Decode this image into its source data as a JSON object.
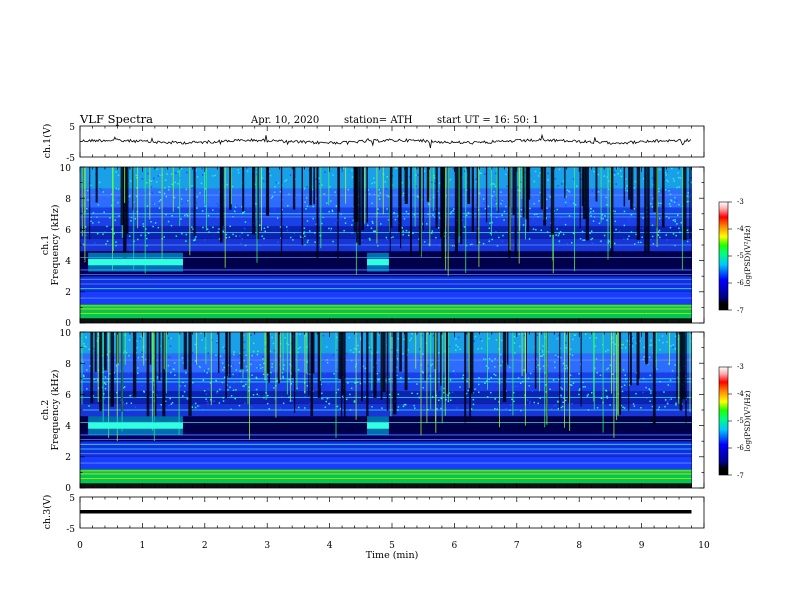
{
  "header": {
    "title": "VLF  Spectra",
    "date": "Apr. 10, 2020",
    "station": "station= ATH",
    "start": "start  UT  =    16: 50: 1"
  },
  "chart_data": [
    {
      "type": "line",
      "panel": "ch1-waveform",
      "ylabel": "ch.1(V)",
      "ylim": [
        -5,
        5
      ],
      "yticks": [
        "5",
        "-5"
      ],
      "xlim": [
        0,
        10
      ],
      "trace_level_approx": 0,
      "color": "#000000"
    },
    {
      "type": "heatmap",
      "panel": "ch1-spectrogram",
      "ylabel": "Frequency (kHz)",
      "channel_label": "ch.1",
      "ylim": [
        0,
        10
      ],
      "yticks": [
        "0",
        "2",
        "4",
        "6",
        "8",
        "10"
      ],
      "xlim": [
        0,
        10
      ],
      "data_end_min": 9.8,
      "colorbar": {
        "label": "log(PSD)(V²/Hz)",
        "range": [
          -7,
          -3
        ],
        "ticks": [
          "-3",
          "-4",
          "-5",
          "-6",
          "-7"
        ]
      },
      "signal_bursts": [
        {
          "t_start": 0.13,
          "t_end": 1.65,
          "f_khz": 3.9
        },
        {
          "t_start": 4.6,
          "t_end": 4.95,
          "f_khz": 3.9
        }
      ]
    },
    {
      "type": "heatmap",
      "panel": "ch2-spectrogram",
      "ylabel": "Frequency (kHz)",
      "channel_label": "ch.2",
      "ylim": [
        0,
        10
      ],
      "yticks": [
        "0",
        "2",
        "4",
        "6",
        "8",
        "10"
      ],
      "xlim": [
        0,
        10
      ],
      "data_end_min": 9.8,
      "colorbar": {
        "label": "log(PSD)(V²/Hz)",
        "range": [
          -7,
          -3
        ],
        "ticks": [
          "-3",
          "-4",
          "-5",
          "-6",
          "-7"
        ]
      },
      "signal_bursts": [
        {
          "t_start": 0.13,
          "t_end": 1.65,
          "f_khz": 4.0
        },
        {
          "t_start": 4.6,
          "t_end": 4.95,
          "f_khz": 4.0
        }
      ]
    },
    {
      "type": "line",
      "panel": "ch3-waveform",
      "ylabel": "ch.3(V)",
      "ylim": [
        -5,
        5
      ],
      "yticks": [
        "5",
        "-5"
      ],
      "xlim": [
        0,
        10
      ],
      "trace_level_approx": 0,
      "color": "#000000"
    }
  ],
  "xaxis": {
    "label": "Time  (min)",
    "ticks": [
      "0",
      "1",
      "2",
      "3",
      "4",
      "5",
      "6",
      "7",
      "8",
      "9",
      "10"
    ]
  }
}
